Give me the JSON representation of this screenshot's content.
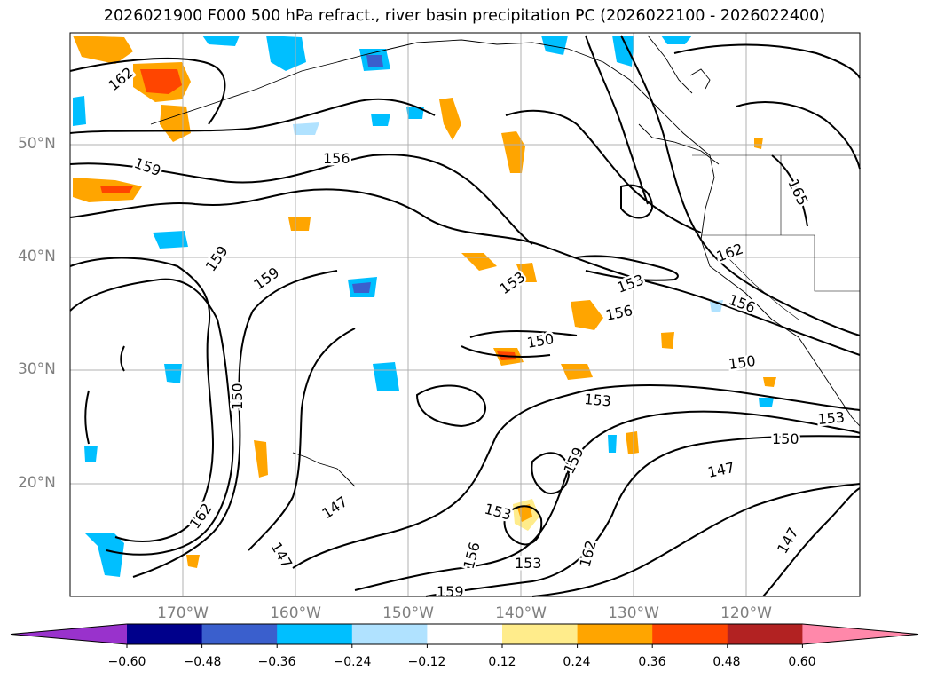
{
  "title": "2026021900 F000 500 hPa refract., river basin precipitation PC (2026022100 - 2026022400)",
  "map": {
    "lat_labels": [
      "50°N",
      "40°N",
      "30°N",
      "20°N"
    ],
    "lon_labels": [
      "170°W",
      "160°W",
      "150°W",
      "140°W",
      "130°W",
      "120°W"
    ],
    "contour_labels": [
      "162",
      "159",
      "156",
      "159",
      "159",
      "153",
      "153",
      "156",
      "150",
      "150",
      "147",
      "147",
      "150",
      "153",
      "159",
      "153",
      "156",
      "153",
      "150",
      "162",
      "165",
      "162",
      "156",
      "159",
      "147",
      "147",
      "162",
      "153"
    ]
  },
  "colorbar": {
    "ticks": [
      "−0.60",
      "−0.48",
      "−0.36",
      "−0.24",
      "−0.12",
      "0.12",
      "0.24",
      "0.36",
      "0.48",
      "0.60"
    ],
    "colors": [
      "#9932cc",
      "#00008b",
      "#3a5fcd",
      "#00bfff",
      "#b0e2ff",
      "#ffffff",
      "#ffec8b",
      "#ffa500",
      "#ff4500",
      "#b22222",
      "#ff88aa"
    ]
  }
}
